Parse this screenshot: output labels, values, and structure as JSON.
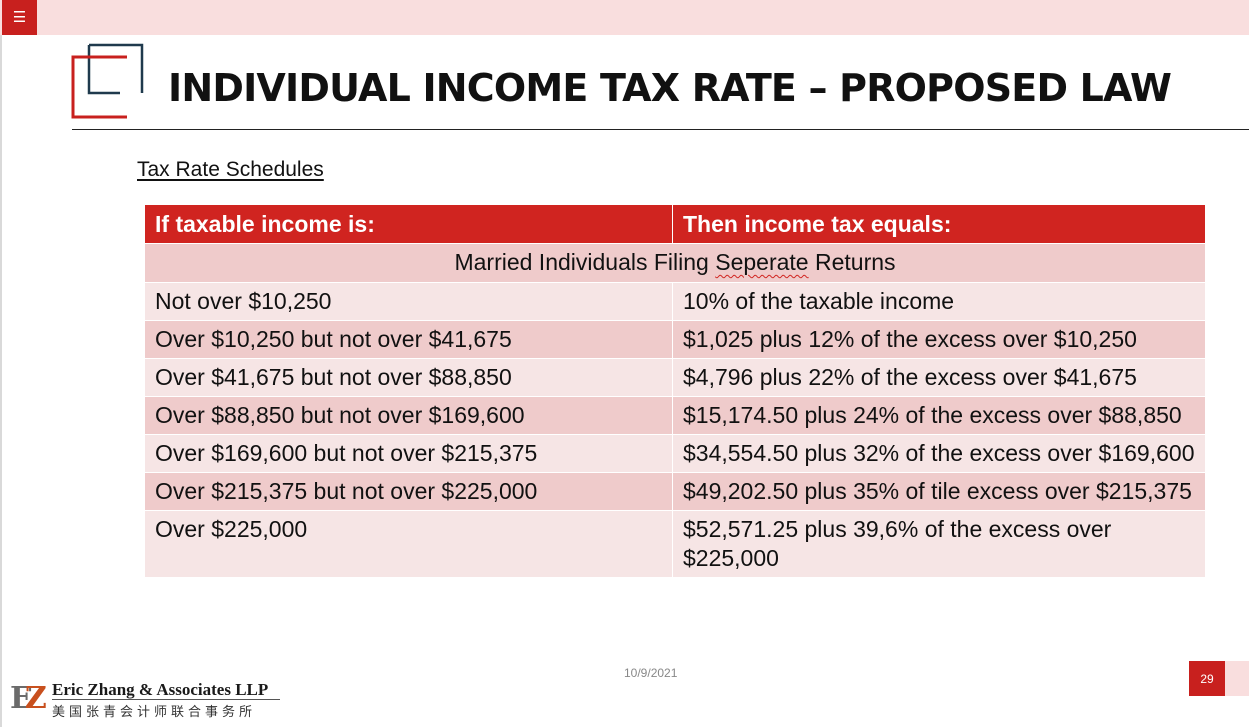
{
  "toolbar": {
    "menu_icon": "hamburger-menu-icon"
  },
  "slide": {
    "title": "INDIVIDUAL INCOME TAX RATE – PROPOSED LAW",
    "subtitle": "Tax Rate Schedules",
    "table": {
      "headers": [
        "If taxable income is:",
        "Then income tax equals:"
      ],
      "section_parts": [
        "Married Individuals Filing ",
        "Seperate",
        " Returns"
      ],
      "rows": [
        [
          "Not over $10,250",
          "10% of the taxable income"
        ],
        [
          "Over $10,250 but not over $41,675",
          "$1,025 plus 12% of the excess over $10,250"
        ],
        [
          "Over $41,675 but not over $88,850",
          "$4,796 plus 22% of the excess over $41,675"
        ],
        [
          "Over $88,850 but not over $169,600",
          "$15,174.50 plus 24% of the excess over $88,850"
        ],
        [
          "Over $169,600 but not over $215,375",
          "$34,554.50 plus 32% of the excess over $169,600"
        ],
        [
          "Over $215,375 but not over $225,000",
          "$49,202.50 plus 35% of tile excess over $215,375"
        ],
        [
          "Over $225,000",
          "$52,571.25 plus 39,6% of the excess over $225,000"
        ]
      ]
    },
    "footer_date": "10/9/2021",
    "page_number": "29"
  },
  "firm": {
    "name": "Eric Zhang & Associates LLP",
    "chinese_name": "美国张青会计师联合事务所",
    "mark_letters": [
      "E",
      "Z"
    ]
  },
  "colors": {
    "accent": "#c8201e",
    "header_red": "#d02420",
    "row_dark": "#efcbcb",
    "row_light": "#f6e5e5",
    "top_bar": "#f9dede"
  }
}
